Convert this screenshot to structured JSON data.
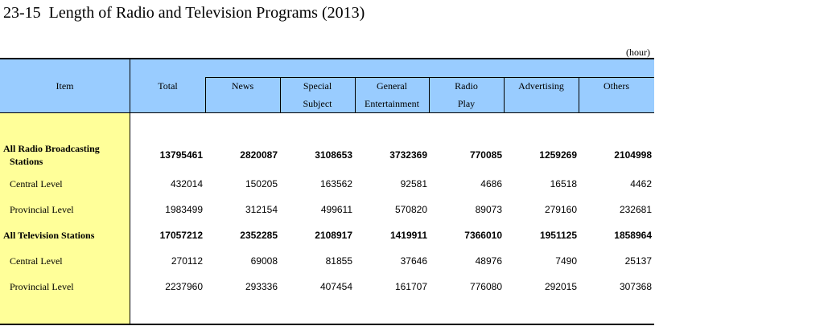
{
  "title": "23-15  Length of Radio and Television Programs (2013)",
  "unit": "(hour)",
  "headers": {
    "item": "Item",
    "total": "Total",
    "news": "News",
    "special_1": "Special",
    "special_2": "Subject",
    "general_1": "General",
    "general_2": "Entertainment",
    "radio_1": "Radio",
    "radio_2": "Play",
    "advertising": "Advertising",
    "others": "Others"
  },
  "rows": [
    {
      "label_1": "All Radio Broadcasting",
      "label_2": "Stations",
      "values": [
        "13795461",
        "2820087",
        "3108653",
        "3732369",
        "770085",
        "1259269",
        "2104998"
      ]
    },
    {
      "label_1": "Central Level",
      "label_2": "",
      "values": [
        "432014",
        "150205",
        "163562",
        "92581",
        "4686",
        "16518",
        "4462"
      ]
    },
    {
      "label_1": "Provincial Level",
      "label_2": "",
      "values": [
        "1983499",
        "312154",
        "499611",
        "570820",
        "89073",
        "279160",
        "232681"
      ]
    },
    {
      "label_1": "All Television Stations",
      "label_2": "",
      "values": [
        "17057212",
        "2352285",
        "2108917",
        "1419911",
        "7366010",
        "1951125",
        "1858964"
      ]
    },
    {
      "label_1": "Central Level",
      "label_2": "",
      "values": [
        "270112",
        "69008",
        "81855",
        "37646",
        "48976",
        "7490",
        "25137"
      ]
    },
    {
      "label_1": "Provincial Level",
      "label_2": "",
      "values": [
        "2237960",
        "293336",
        "407454",
        "161707",
        "776080",
        "292015",
        "307368"
      ]
    }
  ]
}
